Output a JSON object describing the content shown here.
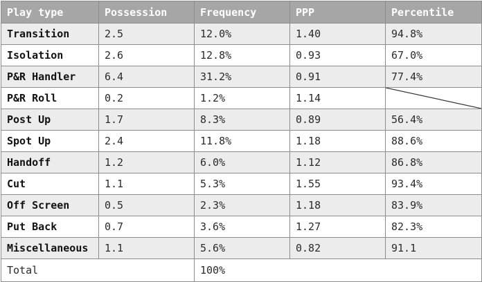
{
  "headers": [
    "Play type",
    "Possession",
    "Frequency",
    "PPP",
    "Percentile"
  ],
  "rows": [
    {
      "type": "Transition",
      "possession": "2.5",
      "frequency": "12.0%",
      "ppp": "1.40",
      "percentile": "94.8%"
    },
    {
      "type": "Isolation",
      "possession": "2.6",
      "frequency": "12.8%",
      "ppp": "0.93",
      "percentile": "67.0%"
    },
    {
      "type": "P&R Handler",
      "possession": "6.4",
      "frequency": "31.2%",
      "ppp": "0.91",
      "percentile": "77.4%"
    },
    {
      "type": "P&R Roll",
      "possession": "0.2",
      "frequency": "1.2%",
      "ppp": "1.14",
      "percentile": ""
    },
    {
      "type": "Post Up",
      "possession": "1.7",
      "frequency": "8.3%",
      "ppp": "0.89",
      "percentile": "56.4%"
    },
    {
      "type": "Spot Up",
      "possession": "2.4",
      "frequency": "11.8%",
      "ppp": "1.18",
      "percentile": "88.6%"
    },
    {
      "type": "Handoff",
      "possession": "1.2",
      "frequency": "6.0%",
      "ppp": "1.12",
      "percentile": "86.8%"
    },
    {
      "type": "Cut",
      "possession": "1.1",
      "frequency": "5.3%",
      "ppp": "1.55",
      "percentile": "93.4%"
    },
    {
      "type": "Off Screen",
      "possession": "0.5",
      "frequency": "2.3%",
      "ppp": "1.18",
      "percentile": "83.9%"
    },
    {
      "type": "Put Back",
      "possession": "0.7",
      "frequency": "3.6%",
      "ppp": "1.27",
      "percentile": "82.3%"
    },
    {
      "type": "Miscellaneous",
      "possession": "1.1",
      "frequency": "5.6%",
      "ppp": "0.82",
      "percentile": "91.1"
    }
  ],
  "total": {
    "label": "Total",
    "frequency": "100%"
  },
  "colors": {
    "header_bg": "#a6a6a6",
    "header_text": "#ffffff",
    "shaded_row": "#ececec",
    "border": "#8c8c8c"
  }
}
